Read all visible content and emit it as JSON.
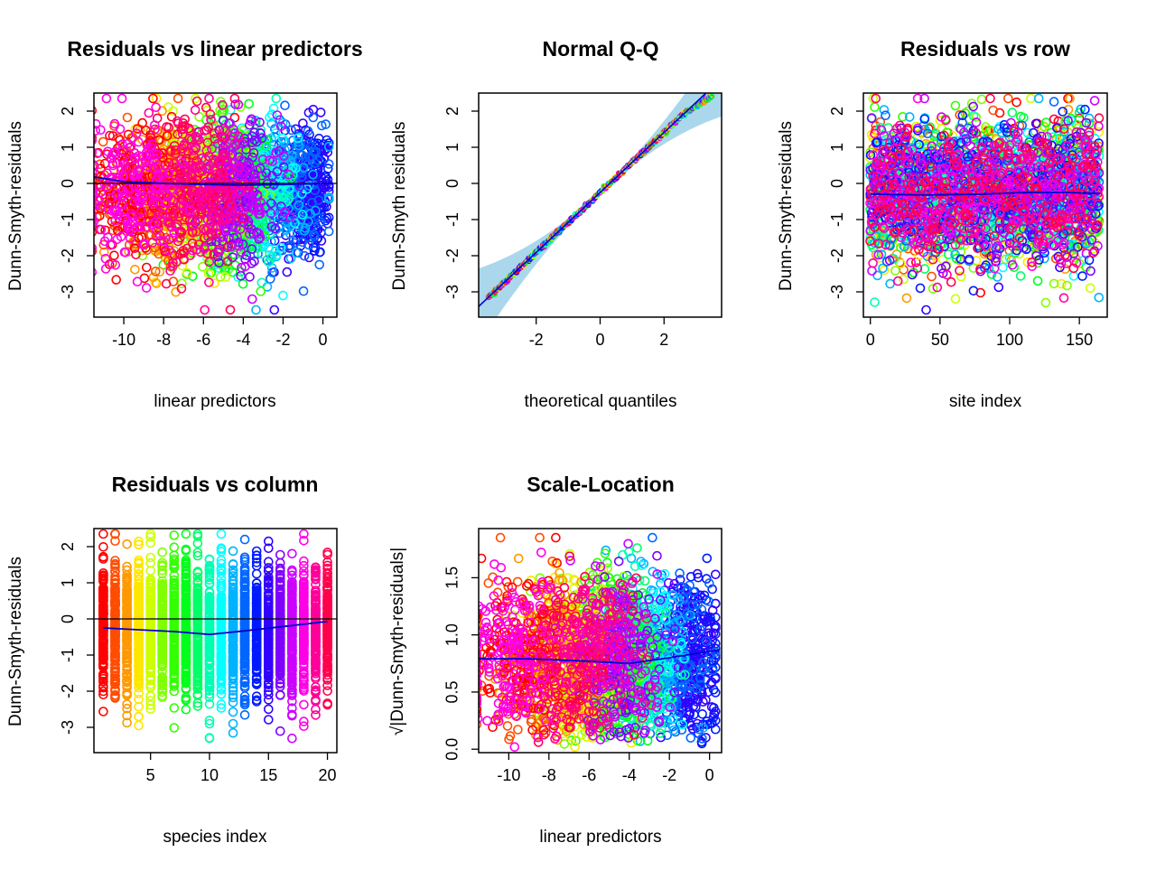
{
  "colors": {
    "palette": [
      "#ff0000",
      "#ff4d00",
      "#ff9900",
      "#ffe600",
      "#ccff00",
      "#80ff00",
      "#33ff00",
      "#00ff1a",
      "#00ff66",
      "#00ffb3",
      "#00ffff",
      "#00b3ff",
      "#0066ff",
      "#001aff",
      "#3300ff",
      "#8000ff",
      "#cc00ff",
      "#ff00e6",
      "#ff0099",
      "#ff004d"
    ],
    "smoother": "#0000cc",
    "band": "#8ecae6"
  },
  "chart_data": [
    {
      "id": "resid-vs-linpred",
      "type": "scatter",
      "title": "Residuals vs linear predictors",
      "xlabel": "linear predictors",
      "ylabel": "Dunn-Smyth-residuals",
      "xlim": [
        -11.5,
        0.7
      ],
      "ylim": [
        -3.7,
        2.5
      ],
      "xticks": [
        -10,
        -8,
        -6,
        -4,
        -2,
        0
      ],
      "xtick_labels": [
        "-10",
        "-8",
        "-6",
        "-4",
        "-2",
        "0"
      ],
      "yticks": [
        -3,
        -2,
        -1,
        0,
        1,
        2
      ],
      "ytick_labels": [
        "-3",
        "-2",
        "-1",
        "0",
        "1",
        "2"
      ],
      "reference_line_y": 0,
      "smoother": {
        "x": [
          -11.5,
          -10,
          -8,
          -6,
          -4,
          -2,
          0.5
        ],
        "y": [
          0.18,
          0.05,
          0.0,
          -0.03,
          -0.05,
          -0.03,
          0.0
        ]
      },
      "n_points": 3300
    },
    {
      "id": "normal-qq",
      "type": "scatter",
      "title": "Normal Q-Q",
      "xlabel": "theoretical quantiles",
      "ylabel": "Dunn-Smyth residuals",
      "xlim": [
        -3.8,
        3.8
      ],
      "ylim": [
        -3.7,
        2.5
      ],
      "xticks": [
        -2,
        0,
        2
      ],
      "xtick_labels": [
        "-2",
        "0",
        "2"
      ],
      "yticks": [
        -3,
        -2,
        -1,
        0,
        1,
        2
      ],
      "ytick_labels": [
        "-3",
        "-2",
        "-1",
        "0",
        "1",
        "2"
      ],
      "reference_line": {
        "slope": 0.83,
        "intercept": -0.25
      },
      "quantile_range": [
        -3.5,
        3.5
      ],
      "residual_range": [
        -3.45,
        2.35
      ]
    },
    {
      "id": "resid-vs-row",
      "type": "scatter",
      "title": "Residuals vs row",
      "xlabel": "site index",
      "ylabel": "Dunn-Smyth-residuals",
      "xlim": [
        -5,
        170
      ],
      "ylim": [
        -3.7,
        2.5
      ],
      "xticks": [
        0,
        50,
        100,
        150
      ],
      "xtick_labels": [
        "0",
        "50",
        "100",
        "150"
      ],
      "yticks": [
        -3,
        -2,
        -1,
        0,
        1,
        2
      ],
      "ytick_labels": [
        "-3",
        "-2",
        "-1",
        "0",
        "1",
        "2"
      ],
      "smoother": {
        "x": [
          0,
          40,
          80,
          110,
          140,
          165
        ],
        "y": [
          -0.3,
          -0.32,
          -0.3,
          -0.25,
          -0.25,
          -0.28
        ]
      },
      "n_sites": 165
    },
    {
      "id": "resid-vs-column",
      "type": "scatter",
      "title": "Residuals vs column",
      "xlabel": "species index",
      "ylabel": "Dunn-Smyth-residuals",
      "xlim": [
        0.2,
        20.8
      ],
      "ylim": [
        -3.7,
        2.5
      ],
      "xticks": [
        5,
        10,
        15,
        20
      ],
      "xtick_labels": [
        "5",
        "10",
        "15",
        "20"
      ],
      "yticks": [
        -3,
        -2,
        -1,
        0,
        1,
        2
      ],
      "ytick_labels": [
        "-3",
        "-2",
        "-1",
        "0",
        "1",
        "2"
      ],
      "reference_line_y": 0,
      "smoother": {
        "x": [
          1,
          4,
          7,
          10,
          13,
          16,
          20
        ],
        "y": [
          -0.25,
          -0.3,
          -0.35,
          -0.43,
          -0.33,
          -0.22,
          -0.07
        ]
      },
      "n_species": 20
    },
    {
      "id": "scale-location",
      "type": "scatter",
      "title": "Scale-Location",
      "xlabel": "linear predictors",
      "ylabel": "√|Dunn-Smyth-residuals|",
      "xlim": [
        -11.5,
        0.6
      ],
      "ylim": [
        -0.03,
        1.93
      ],
      "xticks": [
        -10,
        -8,
        -6,
        -4,
        -2,
        0
      ],
      "xtick_labels": [
        "-10",
        "-8",
        "-6",
        "-4",
        "-2",
        "0"
      ],
      "yticks": [
        0.0,
        0.5,
        1.0,
        1.5
      ],
      "ytick_labels": [
        "0.0",
        "0.5",
        "1.0",
        "1.5"
      ],
      "smoother": {
        "x": [
          -11.5,
          -9,
          -6,
          -4,
          -2,
          0.5
        ],
        "y": [
          0.79,
          0.79,
          0.77,
          0.75,
          0.8,
          0.87
        ]
      }
    }
  ]
}
